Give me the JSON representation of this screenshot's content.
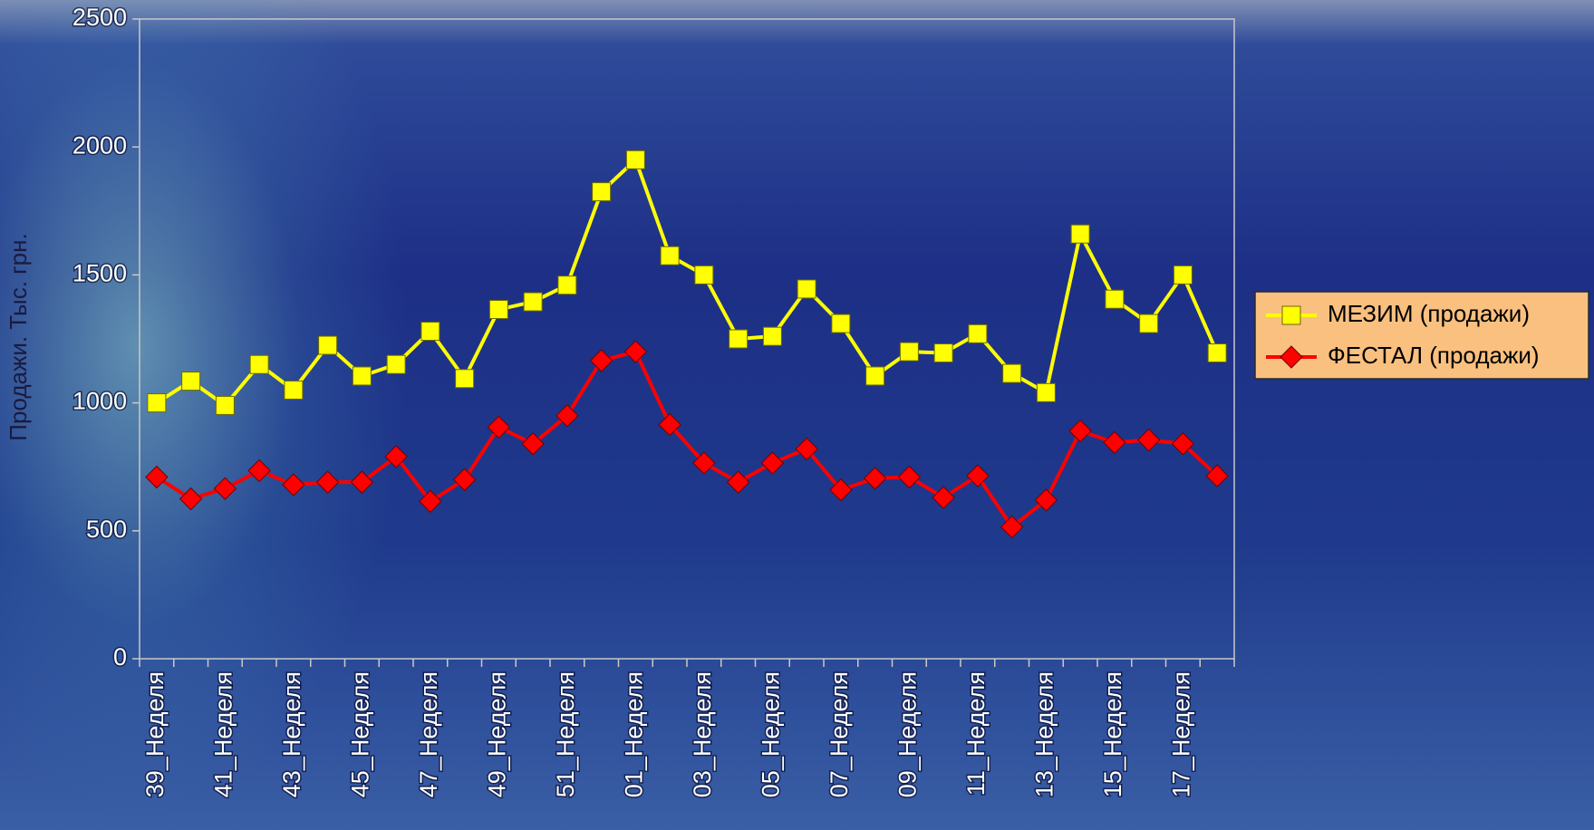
{
  "chart_data": {
    "type": "line",
    "y_axis_label": "Продажи. Тыс. грн.",
    "categories": [
      "39_Неделя",
      null,
      "41_Неделя",
      null,
      "43_Неделя",
      null,
      "45_Неделя",
      null,
      "47_Неделя",
      null,
      "49_Неделя",
      null,
      "51_Неделя",
      null,
      "01_Неделя",
      null,
      "03_Неделя",
      null,
      "05_Неделя",
      null,
      "07_Неделя",
      null,
      "09_Неделя",
      null,
      "11_Неделя",
      null,
      "13_Неделя",
      null,
      "15_Неделя",
      null,
      "17_Неделя",
      null
    ],
    "series": [
      {
        "name": "МЕЗИМ (продажи)",
        "color": "#ffff00",
        "marker": "square",
        "values": [
          1000,
          1085,
          990,
          1150,
          1050,
          1225,
          1105,
          1150,
          1280,
          1095,
          1365,
          1395,
          1460,
          1825,
          1950,
          1575,
          1500,
          1250,
          1260,
          1445,
          1310,
          1105,
          1200,
          1195,
          1270,
          1115,
          1040,
          1660,
          1405,
          1310,
          1500,
          1195
        ]
      },
      {
        "name": "ФЕСТАЛ (продажи)",
        "color": "#ff0000",
        "marker": "diamond",
        "values": [
          710,
          625,
          665,
          735,
          680,
          690,
          690,
          790,
          615,
          700,
          905,
          840,
          950,
          1165,
          1200,
          915,
          765,
          690,
          765,
          820,
          660,
          705,
          710,
          630,
          715,
          515,
          620,
          890,
          845,
          855,
          840,
          715
        ]
      }
    ],
    "ylim": [
      0,
      2500
    ],
    "yticks": [
      0,
      500,
      1000,
      1500,
      2000,
      2500
    ],
    "legend": "right"
  }
}
